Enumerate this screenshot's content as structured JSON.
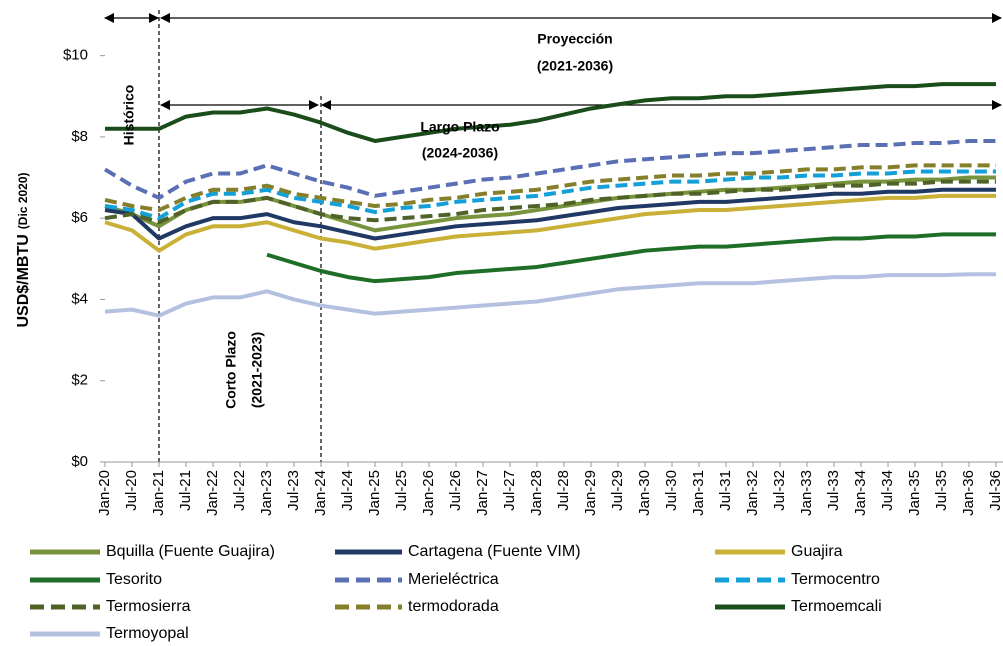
{
  "chart_data": {
    "type": "line",
    "y_label": "USD$/MBTU",
    "y_label_unit": "(Dic 2020)",
    "annotations": {
      "historico": "Histórico",
      "proyeccion": [
        "Proyección",
        "(2021-2036)"
      ],
      "largo_plazo": [
        "Largo Plazo",
        "(2024-2036)"
      ],
      "corto_plazo": [
        "Corto Plazo",
        "(2021-2023)"
      ]
    },
    "categories": [
      "Jan-20",
      "Jul-20",
      "Jan-21",
      "Jul-21",
      "Jan-22",
      "Jul-22",
      "Jan-23",
      "Jul-23",
      "Jan-24",
      "Jul-24",
      "Jan-25",
      "Jul-25",
      "Jan-26",
      "Jul-26",
      "Jan-27",
      "Jul-27",
      "Jan-28",
      "Jul-28",
      "Jan-29",
      "Jul-29",
      "Jan-30",
      "Jul-30",
      "Jan-31",
      "Jul-31",
      "Jan-32",
      "Jul-32",
      "Jan-33",
      "Jul-33",
      "Jan-34",
      "Jul-34",
      "Jan-35",
      "Jul-35",
      "Jan-36",
      "Jul-36"
    ],
    "ylim": [
      0,
      11
    ],
    "yticks": [
      {
        "value": 0,
        "label": "$0"
      },
      {
        "value": 2,
        "label": "$2"
      },
      {
        "value": 4,
        "label": "$4"
      },
      {
        "value": 6,
        "label": "$6"
      },
      {
        "value": 8,
        "label": "$8"
      },
      {
        "value": 10,
        "label": "$10"
      }
    ],
    "series": [
      {
        "name": "Bquilla (Fuente Guajira)",
        "color": "#77933c",
        "style": "solid",
        "values": [
          6.3,
          6.1,
          5.8,
          6.2,
          6.4,
          6.4,
          6.5,
          6.3,
          6.1,
          5.9,
          5.7,
          5.8,
          5.9,
          6.0,
          6.05,
          6.1,
          6.2,
          6.3,
          6.4,
          6.5,
          6.55,
          6.6,
          6.65,
          6.7,
          6.7,
          6.75,
          6.8,
          6.85,
          6.9,
          6.9,
          6.95,
          6.95,
          7.0,
          7.0
        ]
      },
      {
        "name": "Cartagena (Fuente VIM)",
        "color": "#1f3864",
        "style": "solid",
        "values": [
          6.2,
          6.1,
          5.5,
          5.8,
          6.0,
          6.0,
          6.1,
          5.9,
          5.8,
          5.65,
          5.5,
          5.6,
          5.7,
          5.8,
          5.85,
          5.9,
          5.95,
          6.05,
          6.15,
          6.25,
          6.3,
          6.35,
          6.4,
          6.4,
          6.45,
          6.5,
          6.55,
          6.6,
          6.6,
          6.65,
          6.65,
          6.7,
          6.7,
          6.7
        ]
      },
      {
        "name": "Guajira",
        "color": "#c9b037",
        "style": "solid",
        "values": [
          5.9,
          5.7,
          5.2,
          5.6,
          5.8,
          5.8,
          5.9,
          5.7,
          5.5,
          5.4,
          5.25,
          5.35,
          5.45,
          5.55,
          5.6,
          5.65,
          5.7,
          5.8,
          5.9,
          6.0,
          6.1,
          6.15,
          6.2,
          6.2,
          6.25,
          6.3,
          6.35,
          6.4,
          6.45,
          6.5,
          6.5,
          6.55,
          6.55,
          6.55
        ]
      },
      {
        "name": "Tesorito",
        "color": "#1e6e28",
        "style": "solid",
        "values": [
          null,
          null,
          null,
          null,
          null,
          null,
          5.1,
          4.9,
          4.7,
          4.55,
          4.45,
          4.5,
          4.55,
          4.65,
          4.7,
          4.75,
          4.8,
          4.9,
          5.0,
          5.1,
          5.2,
          5.25,
          5.3,
          5.3,
          5.35,
          5.4,
          5.45,
          5.5,
          5.5,
          5.55,
          5.55,
          5.6,
          5.6,
          5.6
        ]
      },
      {
        "name": "Merieléctrica",
        "color": "#5b6fb5",
        "style": "dashed",
        "values": [
          7.2,
          6.8,
          6.5,
          6.9,
          7.1,
          7.1,
          7.3,
          7.1,
          6.9,
          6.75,
          6.55,
          6.65,
          6.75,
          6.85,
          6.95,
          7.0,
          7.1,
          7.2,
          7.3,
          7.4,
          7.45,
          7.5,
          7.55,
          7.6,
          7.6,
          7.65,
          7.7,
          7.75,
          7.8,
          7.8,
          7.85,
          7.85,
          7.9,
          7.9
        ]
      },
      {
        "name": "Termocentro",
        "color": "#12a0d7",
        "style": "dashed",
        "values": [
          6.3,
          6.2,
          6.0,
          6.4,
          6.6,
          6.6,
          6.7,
          6.5,
          6.4,
          6.3,
          6.15,
          6.25,
          6.3,
          6.4,
          6.45,
          6.5,
          6.55,
          6.65,
          6.75,
          6.8,
          6.85,
          6.9,
          6.9,
          6.95,
          7.0,
          7.0,
          7.05,
          7.05,
          7.1,
          7.1,
          7.15,
          7.15,
          7.15,
          7.15
        ]
      },
      {
        "name": "Termosierra",
        "color": "#4f6228",
        "style": "dashed",
        "values": [
          6.0,
          6.1,
          5.9,
          6.2,
          6.4,
          6.4,
          6.5,
          6.3,
          6.1,
          6.0,
          5.95,
          6.0,
          6.05,
          6.1,
          6.2,
          6.25,
          6.3,
          6.35,
          6.45,
          6.5,
          6.55,
          6.6,
          6.6,
          6.65,
          6.7,
          6.7,
          6.75,
          6.8,
          6.8,
          6.85,
          6.85,
          6.9,
          6.9,
          6.9
        ]
      },
      {
        "name": "termodorada",
        "color": "#857f2b",
        "style": "dashed",
        "values": [
          6.45,
          6.3,
          6.2,
          6.5,
          6.7,
          6.7,
          6.8,
          6.6,
          6.5,
          6.4,
          6.3,
          6.35,
          6.45,
          6.5,
          6.6,
          6.65,
          6.7,
          6.8,
          6.9,
          6.95,
          7.0,
          7.05,
          7.05,
          7.1,
          7.1,
          7.15,
          7.2,
          7.2,
          7.25,
          7.25,
          7.3,
          7.3,
          7.3,
          7.3
        ]
      },
      {
        "name": "Termoemcali",
        "color": "#1b4d1b",
        "style": "solid",
        "values": [
          8.2,
          8.2,
          8.2,
          8.5,
          8.6,
          8.6,
          8.7,
          8.55,
          8.35,
          8.1,
          7.9,
          8.0,
          8.1,
          8.2,
          8.25,
          8.3,
          8.4,
          8.55,
          8.7,
          8.8,
          8.9,
          8.95,
          8.95,
          9.0,
          9.0,
          9.05,
          9.1,
          9.15,
          9.2,
          9.25,
          9.25,
          9.3,
          9.3,
          9.3
        ]
      },
      {
        "name": "Termoyopal",
        "color": "#b4c0e0",
        "style": "solid",
        "values": [
          3.7,
          3.75,
          3.6,
          3.9,
          4.05,
          4.05,
          4.2,
          4.0,
          3.85,
          3.75,
          3.65,
          3.7,
          3.75,
          3.8,
          3.85,
          3.9,
          3.95,
          4.05,
          4.15,
          4.25,
          4.3,
          4.35,
          4.4,
          4.4,
          4.4,
          4.45,
          4.5,
          4.55,
          4.55,
          4.6,
          4.6,
          4.6,
          4.62,
          4.62
        ]
      }
    ]
  }
}
